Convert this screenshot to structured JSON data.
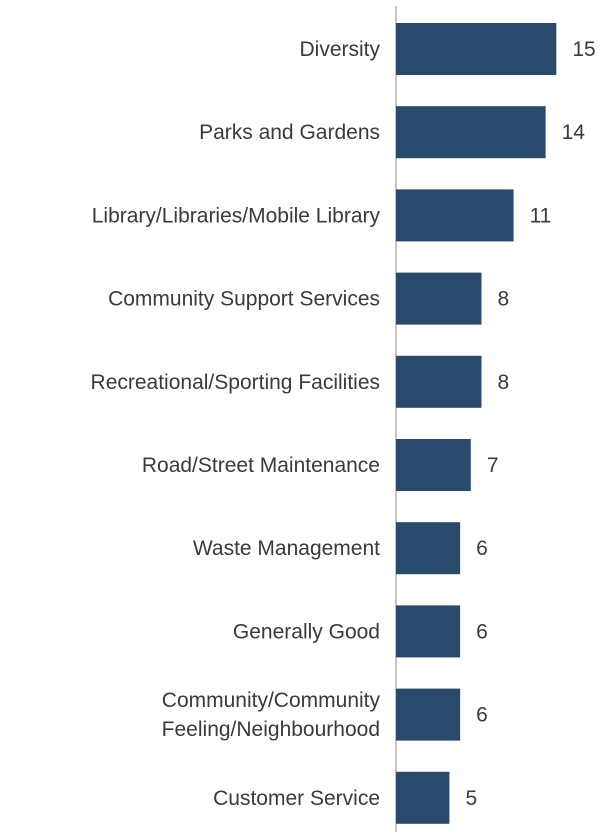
{
  "chart_data": {
    "type": "bar",
    "orientation": "horizontal",
    "categories": [
      [
        "Diversity"
      ],
      [
        "Parks and Gardens"
      ],
      [
        "Library/Libraries/Mobile Library"
      ],
      [
        "Community Support Services"
      ],
      [
        "Recreational/Sporting Facilities"
      ],
      [
        "Road/Street Maintenance"
      ],
      [
        "Waste Management"
      ],
      [
        "Generally Good"
      ],
      [
        "Community/Community",
        "Feeling/Neighbourhood"
      ],
      [
        "Customer Service"
      ]
    ],
    "values": [
      15,
      14,
      11,
      8,
      8,
      7,
      6,
      6,
      6,
      5
    ],
    "xlim": [
      0,
      16
    ],
    "title": "",
    "xlabel": "",
    "ylabel": "",
    "grid": false,
    "data_labels": true,
    "colors": {
      "bar": "#2a4a6c",
      "text": "#3a3a3a",
      "axis": "#888888"
    }
  }
}
